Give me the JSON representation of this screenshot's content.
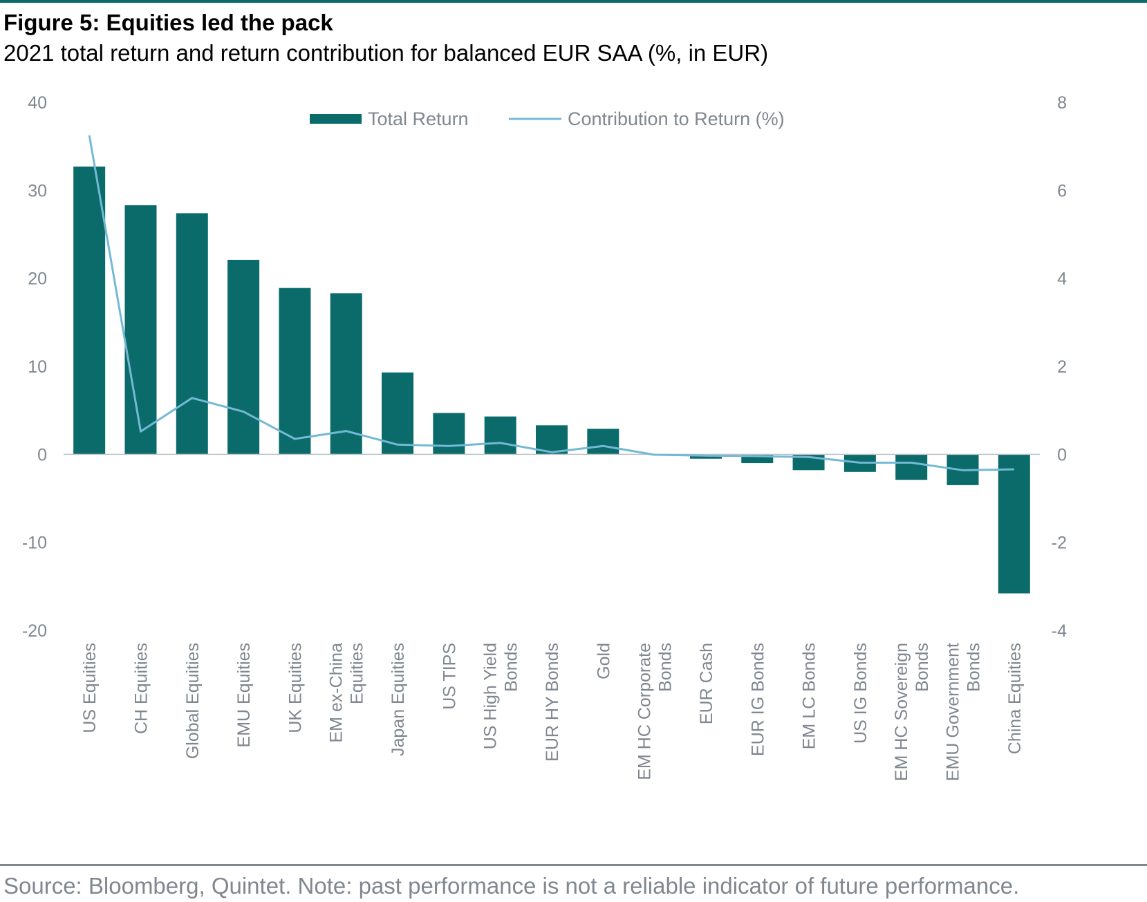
{
  "header": {
    "title": "Figure 5: Equities led the pack",
    "subtitle": "2021 total return and return contribution for balanced EUR SAA (%, in EUR)"
  },
  "footer": {
    "source": "Source: Bloomberg, Quintet. Note: past performance is not a reliable indicator of future performance."
  },
  "colors": {
    "bar": "#0a6b6a",
    "line": "#74b9d4",
    "text": "#7f8790",
    "rule": "#0a6b6a"
  },
  "chart_data": {
    "type": "bar",
    "title": "Figure 5: Equities led the pack",
    "subtitle": "2021 total return and return contribution for balanced EUR SAA (%, in EUR)",
    "categories": [
      [
        "US Equities"
      ],
      [
        "CH Equities"
      ],
      [
        "Global Equities"
      ],
      [
        "EMU Equities"
      ],
      [
        "UK Equities"
      ],
      [
        "EM ex-China",
        "Equities"
      ],
      [
        "Japan Equities"
      ],
      [
        "US TIPS"
      ],
      [
        "US High Yield",
        "Bonds"
      ],
      [
        "EUR HY Bonds"
      ],
      [
        "Gold"
      ],
      [
        "EM HC Corporate",
        "Bonds"
      ],
      [
        "EUR Cash"
      ],
      [
        "EUR IG Bonds"
      ],
      [
        "EM LC Bonds"
      ],
      [
        "US IG Bonds"
      ],
      [
        "EM HC Sovereign",
        "Bonds"
      ],
      [
        "EMU Government",
        "Bonds"
      ],
      [
        "China Equities"
      ]
    ],
    "series": [
      {
        "name": "Total Return",
        "type": "bar",
        "axis": "left",
        "values": [
          32.7,
          28.3,
          27.4,
          22.1,
          18.9,
          18.3,
          9.3,
          4.7,
          4.3,
          3.3,
          2.9,
          0.0,
          -0.5,
          -1.0,
          -1.8,
          -2.0,
          -2.9,
          -3.5,
          -15.8
        ]
      },
      {
        "name": "Contribution to Return (%)",
        "type": "line",
        "axis": "right",
        "values": [
          7.25,
          0.52,
          1.28,
          0.97,
          0.35,
          0.53,
          0.22,
          0.19,
          0.26,
          0.05,
          0.19,
          -0.01,
          -0.03,
          -0.04,
          -0.06,
          -0.19,
          -0.19,
          -0.36,
          -0.34
        ]
      }
    ],
    "yleft": {
      "lim": [
        -20,
        40
      ],
      "ticks": [
        -20,
        -10,
        0,
        10,
        20,
        30,
        40
      ]
    },
    "yright": {
      "lim": [
        -4,
        8
      ],
      "ticks": [
        -4,
        -2,
        0,
        2,
        4,
        6,
        8
      ]
    },
    "legend": "top-center",
    "grid": false
  }
}
